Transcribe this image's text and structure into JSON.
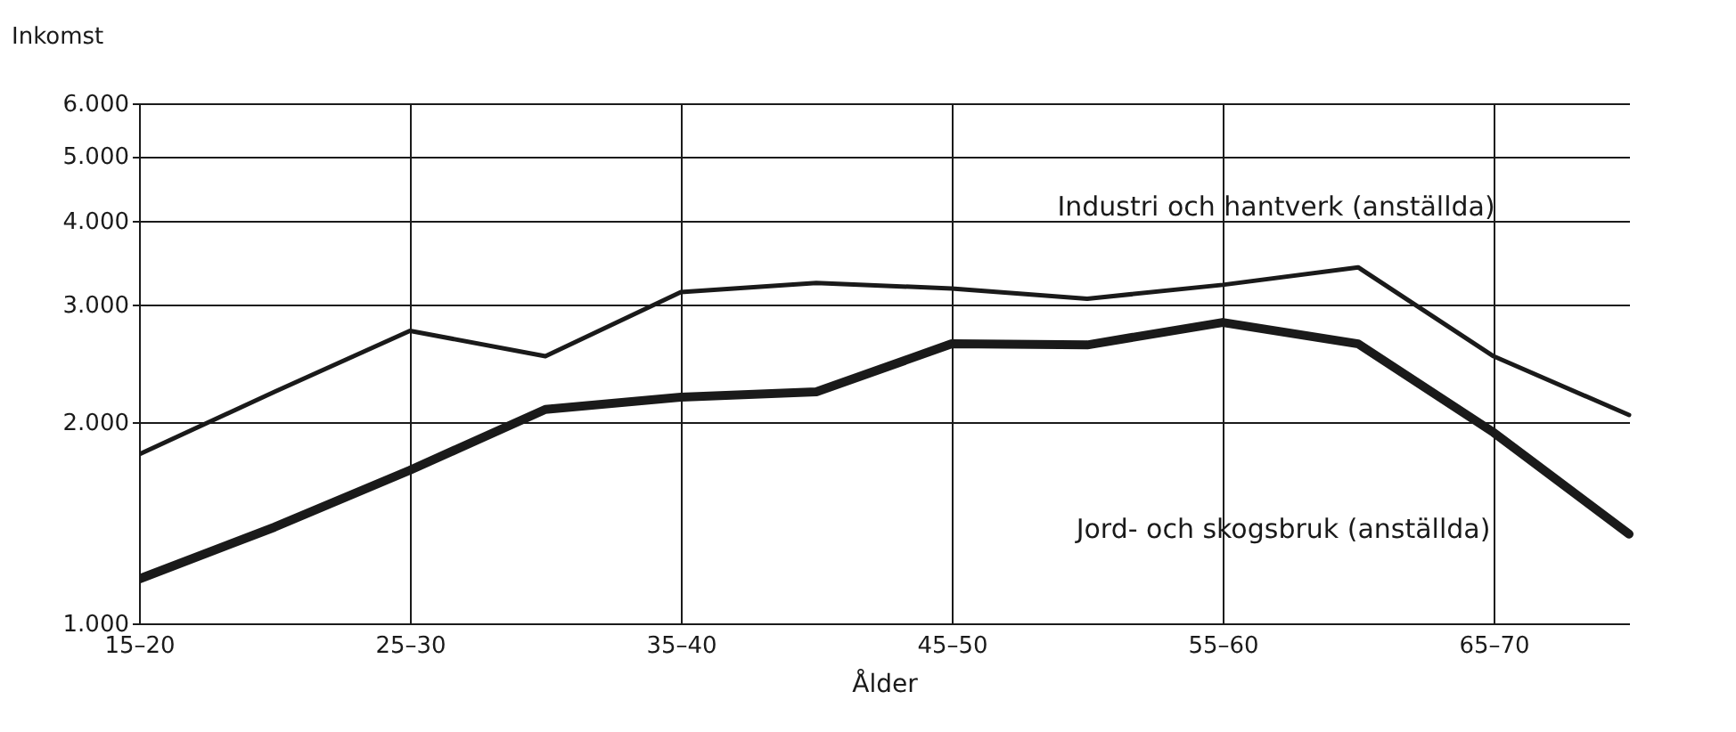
{
  "chart_data": {
    "type": "line",
    "xlabel": "Ålder",
    "ylabel": "Inkomst",
    "categories": [
      "15–20",
      null,
      "25–30",
      null,
      "35–40",
      null,
      "45–50",
      null,
      "55–60",
      null,
      "65–70",
      null
    ],
    "log": "y",
    "ylim": [
      1000,
      6000
    ],
    "yticks": [
      {
        "value": 1000,
        "label": "1.000"
      },
      {
        "value": 2000,
        "label": "2.000"
      },
      {
        "value": 3000,
        "label": "3.000"
      },
      {
        "value": 4000,
        "label": "4.000"
      },
      {
        "value": 5000,
        "label": "5.000"
      },
      {
        "value": 6000,
        "label": "6.000"
      }
    ],
    "grid": true,
    "legend": false,
    "marker": "none",
    "series": [
      {
        "name": "Industri och hantverk (anställda)",
        "color": "#1a1a1a",
        "values": [
          1790,
          2220,
          2740,
          2510,
          3130,
          3230,
          3170,
          3060,
          3210,
          3410,
          2510,
          2050
        ]
      },
      {
        "name": "Jord- och skogsbruk (anställda)",
        "color": "#1a1a1a",
        "values": [
          1165,
          1393,
          1695,
          2090,
          2180,
          2220,
          2620,
          2610,
          2820,
          2620,
          1930,
          1360
        ]
      }
    ]
  }
}
